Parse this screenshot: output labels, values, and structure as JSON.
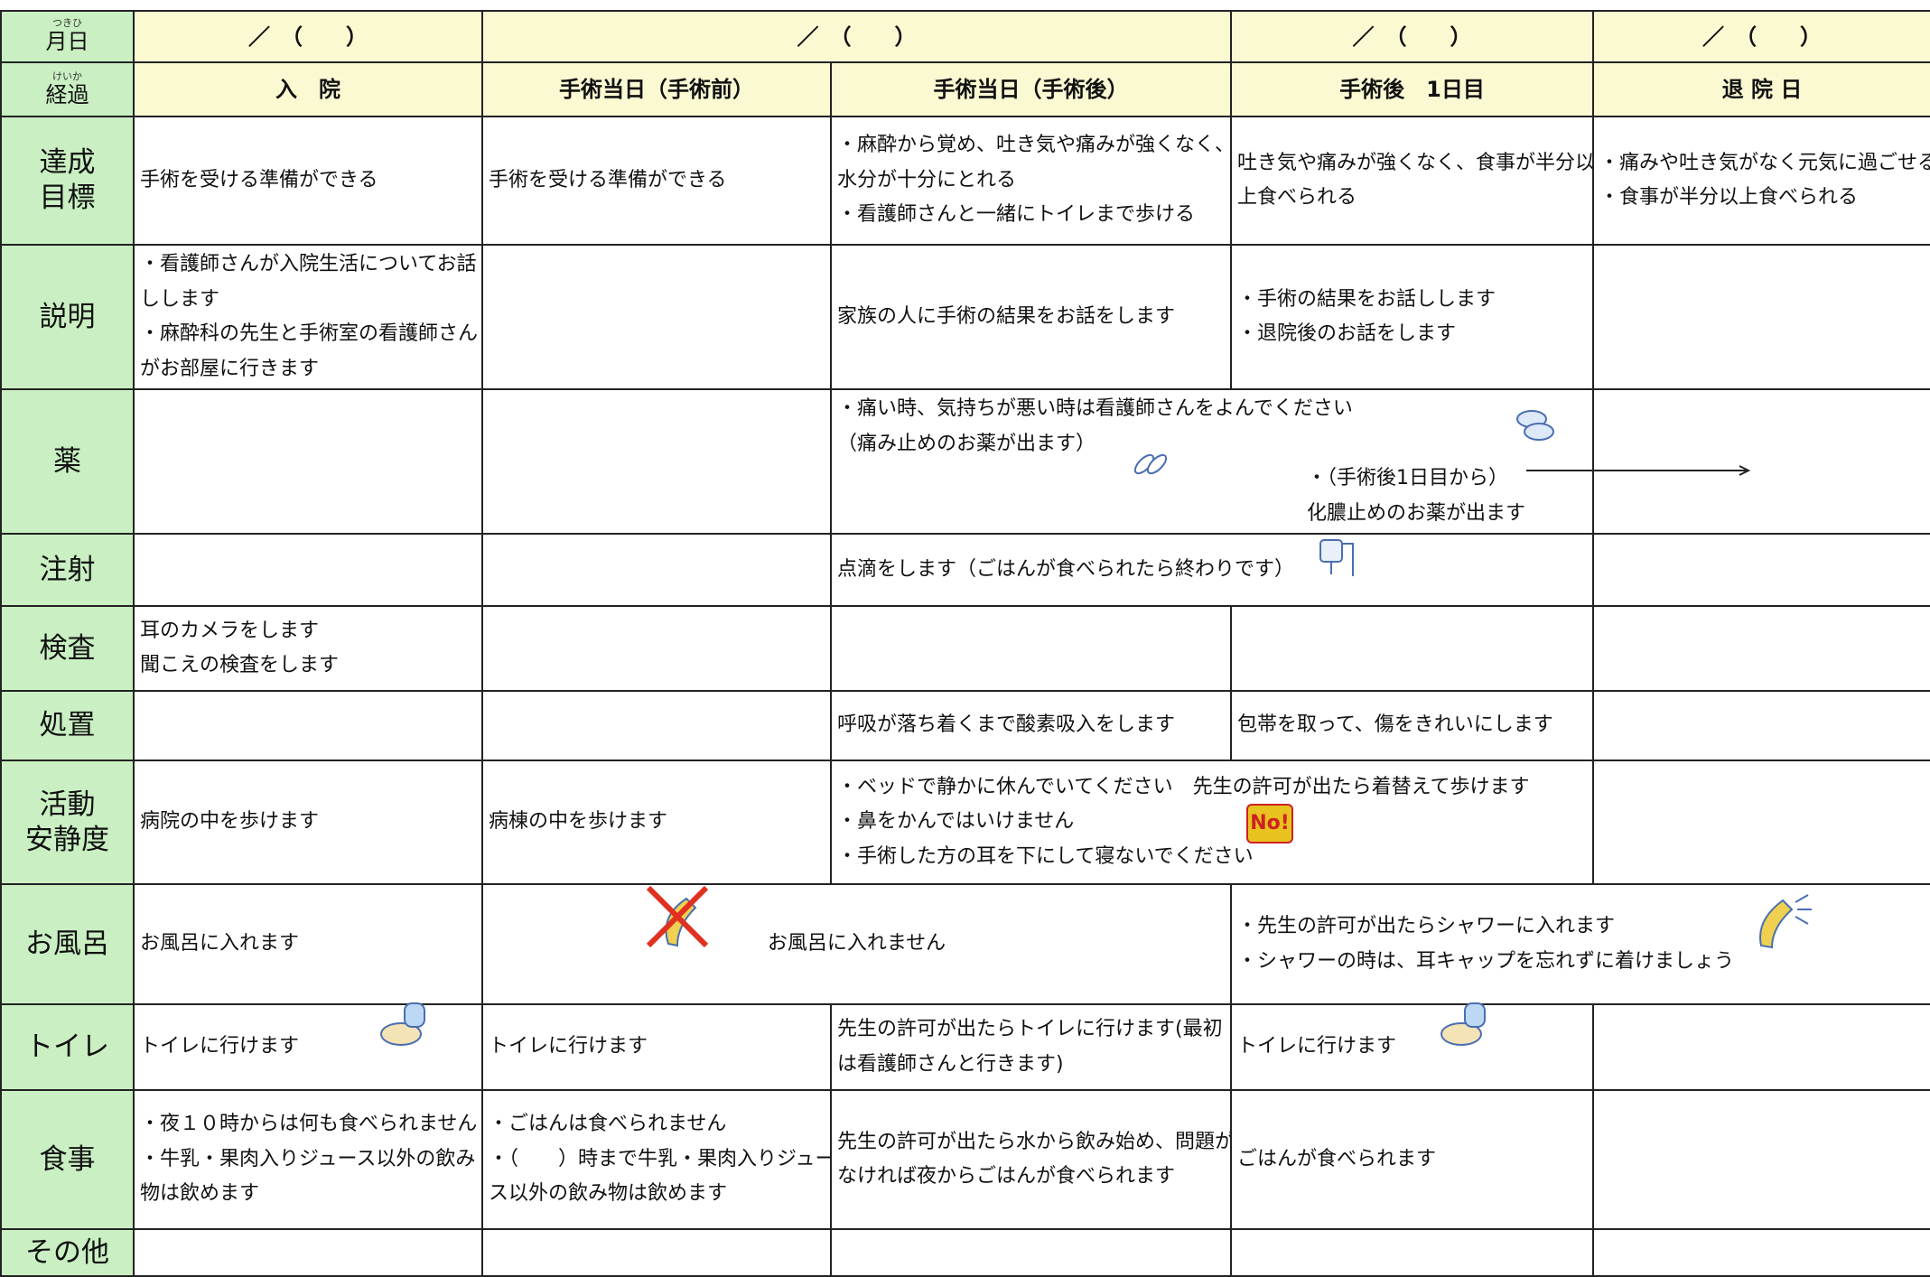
{
  "header": {
    "corner": [
      {
        "label": "月日",
        "reading": "つきひ"
      },
      {
        "label": "経過",
        "reading": "けいか"
      }
    ],
    "dates": [
      "／　（　　）",
      "／　（　　）",
      "／　（　　）",
      "／　（　　）"
    ],
    "stages": [
      "入　院",
      "手術当日（手術前）",
      "手術当日（手術後）",
      "手術後　1日目",
      "退 院 日"
    ]
  },
  "no_icon": "No!",
  "rows": [
    {
      "label": [
        "達成",
        "目標"
      ],
      "cells": [
        [
          "手術を受ける準備ができる"
        ],
        [
          "手術を受ける準備ができる"
        ],
        [
          "・麻酔から覚め、吐き気や痛みが強くなく、",
          "水分が十分にとれる",
          "・看護師さんと一緒にトイレまで歩ける"
        ],
        [
          "吐き気や痛みが強くなく、食事が半分以",
          "上食べられる"
        ],
        [
          "・痛みや吐き気がなく元気に過ごせる",
          "・食事が半分以上食べられる"
        ]
      ]
    },
    {
      "label": [
        "説明"
      ],
      "cells": [
        [
          "・看護師さんが入院生活についてお話",
          "しします",
          "・麻酔科の先生と手術室の看護師さん",
          "がお部屋に行きます"
        ],
        [],
        [
          "家族の人に手術の結果をお話をします"
        ],
        [
          "・手術の結果をお話しします",
          "・退院後のお話をします"
        ],
        []
      ]
    },
    {
      "label": [
        "薬"
      ],
      "cells": [
        [],
        [],
        [
          "・痛い時、気持ちが悪い時は看護師さんをよんでください",
          "（痛み止めのお薬が出ます）",
          "・（手術後1日目から）",
          "化膿止めのお薬が出ます"
        ],
        []
      ]
    },
    {
      "label": [
        "注射"
      ],
      "cells": [
        [],
        [],
        [
          "点滴をします（ごはんが食べられたら終わりです）"
        ],
        []
      ]
    },
    {
      "label": [
        "検査"
      ],
      "cells": [
        [
          "耳のカメラをします",
          "聞こえの検査をします"
        ],
        [],
        [],
        [],
        []
      ]
    },
    {
      "label": [
        "処置"
      ],
      "cells": [
        [],
        [],
        [
          "呼吸が落ち着くまで酸素吸入をします"
        ],
        [
          "包帯を取って、傷をきれいにします"
        ],
        []
      ]
    },
    {
      "label": [
        "活動",
        "安静度"
      ],
      "cells": [
        [
          "病院の中を歩けます"
        ],
        [
          "病棟の中を歩けます"
        ],
        [
          "・ベッドで静かに休んでいてください　先生の許可が出たら着替えて歩けます",
          "・鼻をかんではいけません",
          "・手術した方の耳を下にして寝ないでください"
        ],
        []
      ]
    },
    {
      "label": [
        "お風呂"
      ],
      "cells": [
        [
          "お風呂に入れます"
        ],
        [
          "お風呂に入れません"
        ],
        [
          "・先生の許可が出たらシャワーに入れます",
          "・シャワーの時は、耳キャップを忘れずに着けましょう"
        ]
      ]
    },
    {
      "label": [
        "トイレ"
      ],
      "cells": [
        [
          "トイレに行けます"
        ],
        [
          "トイレに行けます"
        ],
        [
          "先生の許可が出たらトイレに行けます(最初",
          "は看護師さんと行きます)"
        ],
        [
          "トイレに行けます"
        ],
        []
      ]
    },
    {
      "label": [
        "食事"
      ],
      "cells": [
        [
          "・夜１０時からは何も食べられません",
          "・牛乳・果肉入りジュース以外の飲み",
          "物は飲めます"
        ],
        [
          "・ごはんは食べられません",
          "・（　　）時まで牛乳・果肉入りジュー",
          "ス以外の飲み物は飲めます"
        ],
        [
          "先生の許可が出たら水から飲み始め、問題が",
          "なければ夜からごはんが食べられます"
        ],
        [
          "ごはんが食べられます"
        ],
        []
      ]
    },
    {
      "label": [
        "その他"
      ],
      "cells": [
        [],
        [],
        [],
        [],
        []
      ]
    }
  ]
}
